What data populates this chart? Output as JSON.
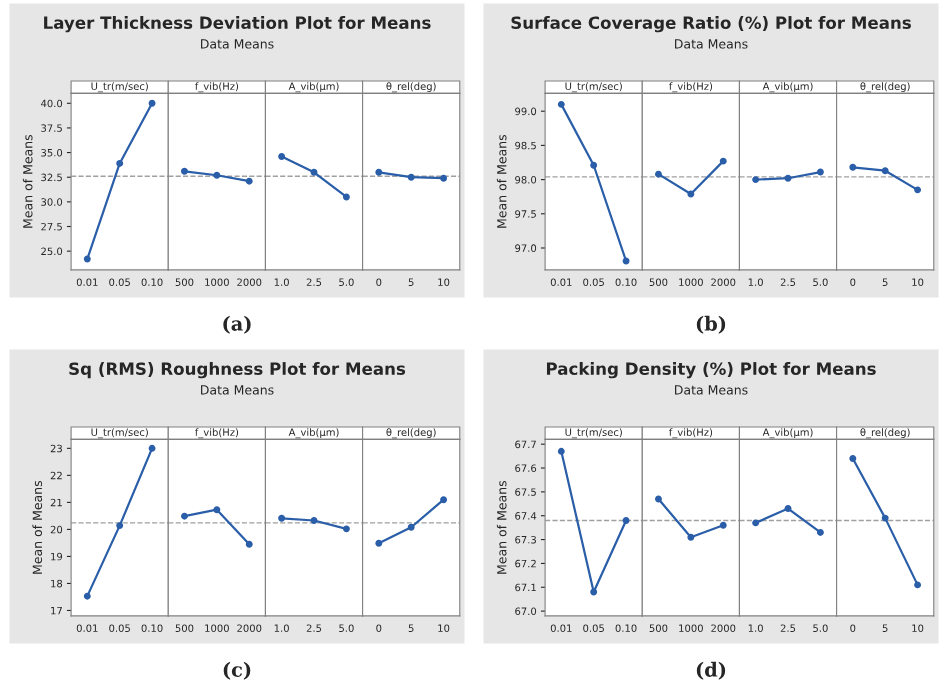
{
  "chart_data": [
    {
      "type": "line",
      "ylabel": "Mean of Means",
      "xlabel": "U_tr(m/sec)",
      "categories": [
        "0.01",
        "0.05",
        "0.10"
      ],
      "values": [
        24.2,
        33.9,
        40.0
      ],
      "color": "#2b5ea8",
      "marker": "circle",
      "ylim": [
        23.1,
        41.0
      ],
      "yticks": [
        {
          "value": 25,
          "label": "25.0"
        },
        27.5,
        {
          "value": 30,
          "label": "30.0"
        },
        32.5,
        {
          "value": 35,
          "label": "35.0"
        },
        37.5,
        {
          "value": 40,
          "label": "40.0"
        }
      ],
      "ref_lines": [
        {
          "axis": "y",
          "value": 32.6,
          "color": "#a0a0a0",
          "line_style": "dashed"
        }
      ]
    },
    {
      "type": "line",
      "title": "Layer Thickness Deviation Plot for Means",
      "subtitle": "Data Means",
      "annotations": [
        "(a)"
      ],
      "xlabel": "f_vib(Hz)",
      "categories": [
        "500",
        "1000",
        "2000"
      ],
      "values": [
        33.1,
        32.7,
        32.1
      ],
      "color": "#2b5ea8",
      "marker": "circle",
      "ylim": [
        23.1,
        41.0
      ],
      "tick_labels": "x",
      "ref_lines": [
        {
          "axis": "y",
          "value": 32.6,
          "color": "#a0a0a0",
          "line_style": "dashed"
        }
      ]
    },
    {
      "type": "line",
      "xlabel": "A_vib(μm)",
      "categories": [
        "1.0",
        "2.5",
        "5.0"
      ],
      "values": [
        34.6,
        33.0,
        30.5
      ],
      "color": "#2b5ea8",
      "marker": "circle",
      "ylim": [
        23.1,
        41.0
      ],
      "tick_labels": "x",
      "ref_lines": [
        {
          "axis": "y",
          "value": 32.6,
          "color": "#a0a0a0",
          "line_style": "dashed"
        }
      ]
    },
    {
      "type": "line",
      "xlabel": "θ_rel(deg)",
      "categories": [
        "0",
        "5",
        "10"
      ],
      "values": [
        33.0,
        32.5,
        32.4
      ],
      "color": "#2b5ea8",
      "marker": "circle",
      "ylim": [
        23.1,
        41.0
      ],
      "tick_labels": "x",
      "ref_lines": [
        {
          "axis": "y",
          "value": 32.6,
          "color": "#a0a0a0",
          "line_style": "dashed"
        }
      ]
    },
    {
      "type": "line",
      "ylabel": "Mean of Means",
      "xlabel": "U_tr(m/sec)",
      "categories": [
        "0.01",
        "0.05",
        "0.10"
      ],
      "values": [
        99.1,
        98.21,
        96.81
      ],
      "color": "#2b5ea8",
      "marker": "circle",
      "ylim": [
        96.68,
        99.26
      ],
      "yticks": [
        {
          "value": 97,
          "label": "97.0"
        },
        97.5,
        {
          "value": 98,
          "label": "98.0"
        },
        98.5,
        {
          "value": 99,
          "label": "99.0"
        }
      ],
      "ref_lines": [
        {
          "axis": "y",
          "value": 98.04,
          "color": "#a0a0a0",
          "line_style": "dashed"
        }
      ]
    },
    {
      "type": "line",
      "title": "Surface Coverage Ratio (%) Plot for Means",
      "subtitle": "Data Means",
      "annotations": [
        "(b)"
      ],
      "xlabel": "f_vib(Hz)",
      "categories": [
        "500",
        "1000",
        "2000"
      ],
      "values": [
        98.08,
        97.79,
        98.27
      ],
      "color": "#2b5ea8",
      "marker": "circle",
      "ylim": [
        96.68,
        99.26
      ],
      "tick_labels": "x",
      "ref_lines": [
        {
          "axis": "y",
          "value": 98.04,
          "color": "#a0a0a0",
          "line_style": "dashed"
        }
      ]
    },
    {
      "type": "line",
      "xlabel": "A_vib(μm)",
      "categories": [
        "1.0",
        "2.5",
        "5.0"
      ],
      "values": [
        98.0,
        98.02,
        98.11
      ],
      "color": "#2b5ea8",
      "marker": "circle",
      "ylim": [
        96.68,
        99.26
      ],
      "tick_labels": "x",
      "ref_lines": [
        {
          "axis": "y",
          "value": 98.04,
          "color": "#a0a0a0",
          "line_style": "dashed"
        }
      ]
    },
    {
      "type": "line",
      "xlabel": "θ_rel(deg)",
      "categories": [
        "0",
        "5",
        "10"
      ],
      "values": [
        98.18,
        98.13,
        97.85
      ],
      "color": "#2b5ea8",
      "marker": "circle",
      "ylim": [
        96.68,
        99.26
      ],
      "tick_labels": "x",
      "ref_lines": [
        {
          "axis": "y",
          "value": 98.04,
          "color": "#a0a0a0",
          "line_style": "dashed"
        }
      ]
    },
    {
      "type": "line",
      "ylabel": "Mean of Means",
      "xlabel": "U_tr(m/sec)",
      "categories": [
        "0.01",
        "0.05",
        "0.10"
      ],
      "values": [
        17.53,
        20.14,
        23.0
      ],
      "color": "#2b5ea8",
      "marker": "circle",
      "ylim": [
        16.8,
        23.33
      ],
      "yticks": [
        17,
        18,
        19,
        20,
        21,
        22,
        23
      ],
      "ref_lines": [
        {
          "axis": "y",
          "value": 20.24,
          "color": "#a0a0a0",
          "line_style": "dashed"
        }
      ]
    },
    {
      "type": "line",
      "title": "Sq (RMS) Roughness Plot for Means",
      "subtitle": "Data Means",
      "annotations": [
        "(c)"
      ],
      "xlabel": "f_vib(Hz)",
      "categories": [
        "500",
        "1000",
        "2000"
      ],
      "values": [
        20.49,
        20.73,
        19.45
      ],
      "color": "#2b5ea8",
      "marker": "circle",
      "ylim": [
        16.8,
        23.33
      ],
      "tick_labels": "x",
      "ref_lines": [
        {
          "axis": "y",
          "value": 20.24,
          "color": "#a0a0a0",
          "line_style": "dashed"
        }
      ]
    },
    {
      "type": "line",
      "xlabel": "A_vib(μm)",
      "categories": [
        "1.0",
        "2.5",
        "5.0"
      ],
      "values": [
        20.41,
        20.33,
        20.02
      ],
      "color": "#2b5ea8",
      "marker": "circle",
      "ylim": [
        16.8,
        23.33
      ],
      "tick_labels": "x",
      "ref_lines": [
        {
          "axis": "y",
          "value": 20.24,
          "color": "#a0a0a0",
          "line_style": "dashed"
        }
      ]
    },
    {
      "type": "line",
      "xlabel": "θ_rel(deg)",
      "categories": [
        "0",
        "5",
        "10"
      ],
      "values": [
        19.49,
        20.08,
        21.1
      ],
      "color": "#2b5ea8",
      "marker": "circle",
      "ylim": [
        16.8,
        23.33
      ],
      "tick_labels": "x",
      "ref_lines": [
        {
          "axis": "y",
          "value": 20.24,
          "color": "#a0a0a0",
          "line_style": "dashed"
        }
      ]
    },
    {
      "type": "line",
      "ylabel": "Mean of Means",
      "xlabel": "U_tr(m/sec)",
      "categories": [
        "0.01",
        "0.05",
        "0.10"
      ],
      "values": [
        67.67,
        67.08,
        67.38
      ],
      "color": "#2b5ea8",
      "marker": "circle",
      "ylim": [
        66.98,
        67.72
      ],
      "yticks": [
        {
          "value": 67,
          "label": "67.0"
        },
        67.1,
        67.2,
        67.3,
        67.4,
        67.5,
        67.6,
        67.7
      ],
      "ref_lines": [
        {
          "axis": "y",
          "value": 67.38,
          "color": "#a0a0a0",
          "line_style": "dashed"
        }
      ]
    },
    {
      "type": "line",
      "title": "Packing Density (%) Plot for Means",
      "subtitle": "Data Means",
      "annotations": [
        "(d)"
      ],
      "xlabel": "f_vib(Hz)",
      "categories": [
        "500",
        "1000",
        "2000"
      ],
      "values": [
        67.47,
        67.31,
        67.36
      ],
      "color": "#2b5ea8",
      "marker": "circle",
      "ylim": [
        66.98,
        67.72
      ],
      "tick_labels": "x",
      "ref_lines": [
        {
          "axis": "y",
          "value": 67.38,
          "color": "#a0a0a0",
          "line_style": "dashed"
        }
      ]
    },
    {
      "type": "line",
      "xlabel": "A_vib(μm)",
      "categories": [
        "1.0",
        "2.5",
        "5.0"
      ],
      "values": [
        67.37,
        67.43,
        67.33
      ],
      "color": "#2b5ea8",
      "marker": "circle",
      "ylim": [
        66.98,
        67.72
      ],
      "tick_labels": "x",
      "ref_lines": [
        {
          "axis": "y",
          "value": 67.38,
          "color": "#a0a0a0",
          "line_style": "dashed"
        }
      ]
    },
    {
      "type": "line",
      "xlabel": "θ_rel(deg)",
      "categories": [
        "0",
        "5",
        "10"
      ],
      "values": [
        67.64,
        67.39,
        67.11
      ],
      "color": "#2b5ea8",
      "marker": "circle",
      "ylim": [
        66.98,
        67.72
      ],
      "tick_labels": "x",
      "ref_lines": [
        {
          "axis": "y",
          "value": 67.38,
          "color": "#a0a0a0",
          "line_style": "dashed"
        }
      ]
    }
  ]
}
